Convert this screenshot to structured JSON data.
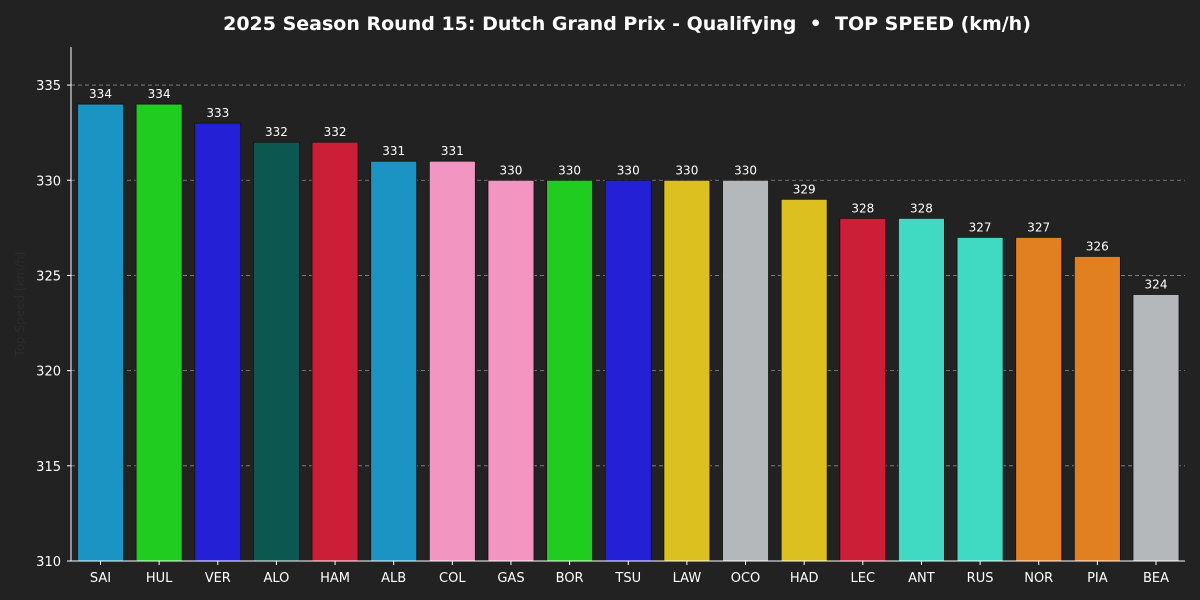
{
  "chart_data": {
    "type": "bar",
    "title": "2025 Season Round 15: Dutch Grand Prix - Qualifying  •  TOP SPEED (km/h)",
    "ylabel": "Top Speed (km/h)",
    "xlabel": "",
    "ylim": [
      310,
      337
    ],
    "yticks": [
      310,
      315,
      320,
      325,
      330,
      335
    ],
    "grid": true,
    "legend": "none",
    "categories": [
      "SAI",
      "HUL",
      "VER",
      "ALO",
      "HAM",
      "ALB",
      "COL",
      "GAS",
      "BOR",
      "TSU",
      "LAW",
      "OCO",
      "HAD",
      "LEC",
      "ANT",
      "RUS",
      "NOR",
      "PIA",
      "BEA"
    ],
    "values": [
      334,
      334,
      333,
      332,
      332,
      331,
      331,
      330,
      330,
      330,
      330,
      330,
      329,
      328,
      328,
      327,
      327,
      326,
      324
    ],
    "colors": [
      "#1b94c4",
      "#1fcc1f",
      "#2420d6",
      "#0c5750",
      "#cd1e38",
      "#1b94c4",
      "#f295c1",
      "#f295c1",
      "#1fcc1f",
      "#2420d6",
      "#dcc020",
      "#b5b8bb",
      "#dcc020",
      "#cd1e38",
      "#40d9c2",
      "#40d9c2",
      "#e08020",
      "#e08020",
      "#b5b8bb"
    ]
  }
}
